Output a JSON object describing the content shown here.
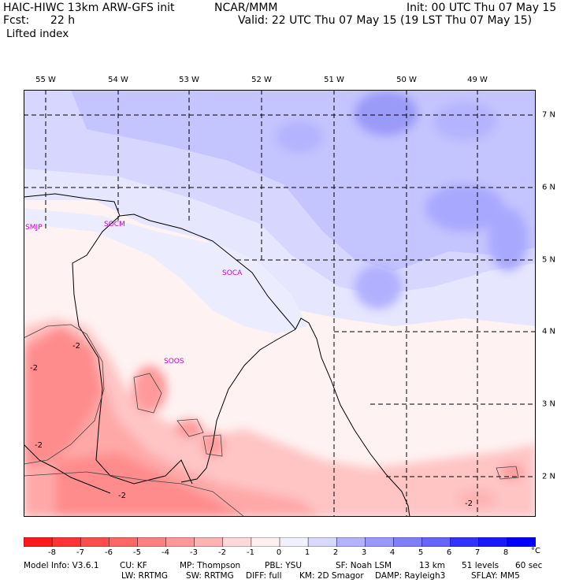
{
  "header": {
    "model": "HAIC-HIWC 13km ARW-GFS init",
    "org": "NCAR/MMM",
    "init": "Init: 00 UTC Thu 07 May 15",
    "fcst_label": "Fcst:",
    "fcst_value": "22 h",
    "valid": "Valid: 22 UTC Thu 07 May 15 (19 LST Thu 07 May 15)",
    "field": "Lifted index"
  },
  "lon_labels": [
    "55 W",
    "54 W",
    "53 W",
    "52 W",
    "51 W",
    "50 W",
    "49 W"
  ],
  "lat_labels": [
    "7 N",
    "6 N",
    "5 N",
    "4 N",
    "3 N",
    "2 N"
  ],
  "stations": [
    "SMJP",
    "SOCM",
    "SOCA",
    "SOOS"
  ],
  "contour_labels": [
    "-2",
    "-2",
    "-2",
    "-2",
    "-2"
  ],
  "legend": {
    "values": [
      "-8",
      "-7",
      "-6",
      "-5",
      "-4",
      "-3",
      "-2",
      "-1",
      "0",
      "1",
      "2",
      "3",
      "4",
      "5",
      "6",
      "7",
      "8"
    ],
    "unit": "°C",
    "colors": [
      "#ff1a1a",
      "#ff3333",
      "#ff4d4d",
      "#ff6666",
      "#ff8080",
      "#ff9999",
      "#ffb3b3",
      "#ffd9d9",
      "#fff0f0",
      "#f0f0ff",
      "#d9d9ff",
      "#b3b3ff",
      "#9999ff",
      "#8080ff",
      "#6666ff",
      "#3333ff",
      "#1a1aff",
      "#0000ff"
    ]
  },
  "footer": {
    "line1": [
      "Model Info: V3.6.1",
      "CU: KF",
      "MP: Thompson",
      "PBL: YSU",
      "SF: Noah LSM",
      "13 km",
      "51 levels",
      "60 sec"
    ],
    "line2": [
      "LW: RRTMG",
      "SW: RRTMG",
      "DIFF: full",
      "KM: 2D Smagor",
      "DAMP: Rayleigh3",
      "SFLAY: MM5"
    ]
  }
}
